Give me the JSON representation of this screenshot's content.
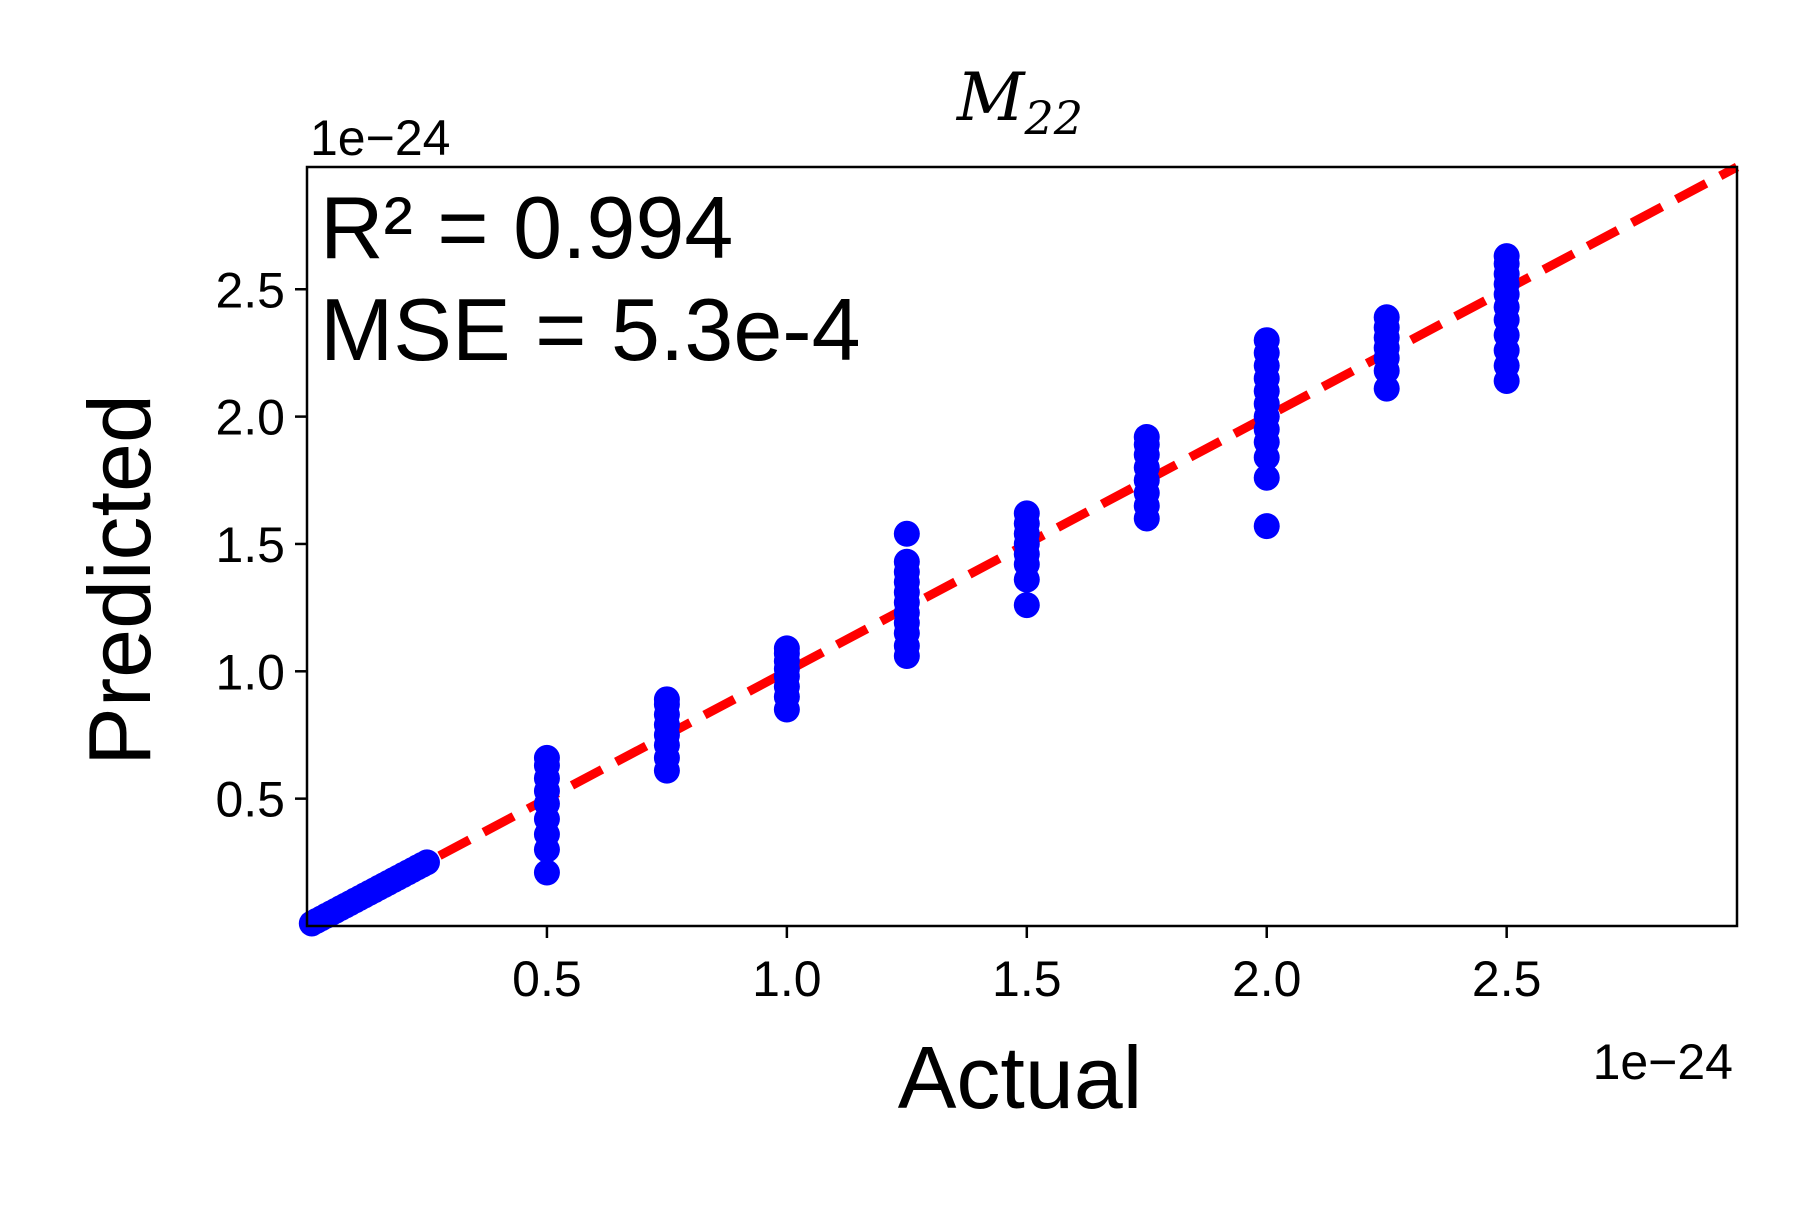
{
  "chart_data": {
    "type": "scatter",
    "title": "M",
    "title_subscript": "22",
    "xlabel": "Actual",
    "ylabel": "Predicted",
    "x_offset_label": "1e−24",
    "y_offset_label": "1e−24",
    "xlim": [
      0.0,
      2.98
    ],
    "ylim": [
      0.0,
      2.98
    ],
    "x_ticks": [
      0.5,
      1.0,
      1.5,
      2.0,
      2.5
    ],
    "x_tick_labels": [
      "0.5",
      "1.0",
      "1.5",
      "2.0",
      "2.5"
    ],
    "y_ticks": [
      0.5,
      1.0,
      1.5,
      2.0,
      2.5
    ],
    "y_tick_labels": [
      "0.5",
      "1.0",
      "1.5",
      "2.0",
      "2.5"
    ],
    "grid": false,
    "annotations": [
      "R² = 0.994",
      "MSE = 5.3e-4"
    ],
    "reference_line": {
      "x": [
        0.0,
        2.98
      ],
      "y": [
        0.0,
        2.98
      ],
      "color": "#ff0000",
      "style": "dashed"
    },
    "marker_color": "#0000ff",
    "points": [
      [
        0.01,
        0.01
      ],
      [
        0.02,
        0.02
      ],
      [
        0.03,
        0.03
      ],
      [
        0.04,
        0.04
      ],
      [
        0.05,
        0.05
      ],
      [
        0.06,
        0.06
      ],
      [
        0.07,
        0.07
      ],
      [
        0.08,
        0.08
      ],
      [
        0.09,
        0.09
      ],
      [
        0.1,
        0.1
      ],
      [
        0.11,
        0.11
      ],
      [
        0.12,
        0.12
      ],
      [
        0.13,
        0.13
      ],
      [
        0.14,
        0.14
      ],
      [
        0.15,
        0.15
      ],
      [
        0.16,
        0.16
      ],
      [
        0.17,
        0.17
      ],
      [
        0.18,
        0.18
      ],
      [
        0.19,
        0.19
      ],
      [
        0.2,
        0.2
      ],
      [
        0.21,
        0.21
      ],
      [
        0.22,
        0.22
      ],
      [
        0.23,
        0.23
      ],
      [
        0.24,
        0.24
      ],
      [
        0.25,
        0.25
      ],
      [
        0.5,
        0.21
      ],
      [
        0.5,
        0.3
      ],
      [
        0.5,
        0.36
      ],
      [
        0.5,
        0.42
      ],
      [
        0.5,
        0.48
      ],
      [
        0.5,
        0.53
      ],
      [
        0.5,
        0.58
      ],
      [
        0.5,
        0.63
      ],
      [
        0.5,
        0.66
      ],
      [
        0.75,
        0.61
      ],
      [
        0.75,
        0.66
      ],
      [
        0.75,
        0.71
      ],
      [
        0.75,
        0.75
      ],
      [
        0.75,
        0.79
      ],
      [
        0.75,
        0.83
      ],
      [
        0.75,
        0.87
      ],
      [
        0.75,
        0.89
      ],
      [
        1.0,
        0.85
      ],
      [
        1.0,
        0.9
      ],
      [
        1.0,
        0.94
      ],
      [
        1.0,
        0.98
      ],
      [
        1.0,
        1.01
      ],
      [
        1.0,
        1.04
      ],
      [
        1.0,
        1.07
      ],
      [
        1.0,
        1.09
      ],
      [
        1.25,
        1.06
      ],
      [
        1.25,
        1.1
      ],
      [
        1.25,
        1.15
      ],
      [
        1.25,
        1.19
      ],
      [
        1.25,
        1.23
      ],
      [
        1.25,
        1.27
      ],
      [
        1.25,
        1.31
      ],
      [
        1.25,
        1.35
      ],
      [
        1.25,
        1.39
      ],
      [
        1.25,
        1.43
      ],
      [
        1.25,
        1.54
      ],
      [
        1.5,
        1.26
      ],
      [
        1.5,
        1.36
      ],
      [
        1.5,
        1.42
      ],
      [
        1.5,
        1.46
      ],
      [
        1.5,
        1.5
      ],
      [
        1.5,
        1.54
      ],
      [
        1.5,
        1.58
      ],
      [
        1.5,
        1.62
      ],
      [
        1.75,
        1.6
      ],
      [
        1.75,
        1.65
      ],
      [
        1.75,
        1.7
      ],
      [
        1.75,
        1.75
      ],
      [
        1.75,
        1.8
      ],
      [
        1.75,
        1.85
      ],
      [
        1.75,
        1.89
      ],
      [
        1.75,
        1.92
      ],
      [
        2.0,
        1.57
      ],
      [
        2.0,
        1.76
      ],
      [
        2.0,
        1.84
      ],
      [
        2.0,
        1.9
      ],
      [
        2.0,
        1.95
      ],
      [
        2.0,
        2.0
      ],
      [
        2.0,
        2.05
      ],
      [
        2.0,
        2.1
      ],
      [
        2.0,
        2.15
      ],
      [
        2.0,
        2.2
      ],
      [
        2.0,
        2.25
      ],
      [
        2.0,
        2.3
      ],
      [
        2.25,
        2.11
      ],
      [
        2.25,
        2.18
      ],
      [
        2.25,
        2.23
      ],
      [
        2.25,
        2.27
      ],
      [
        2.25,
        2.31
      ],
      [
        2.25,
        2.35
      ],
      [
        2.25,
        2.39
      ],
      [
        2.5,
        2.14
      ],
      [
        2.5,
        2.2
      ],
      [
        2.5,
        2.26
      ],
      [
        2.5,
        2.32
      ],
      [
        2.5,
        2.38
      ],
      [
        2.5,
        2.43
      ],
      [
        2.5,
        2.48
      ],
      [
        2.5,
        2.52
      ],
      [
        2.5,
        2.56
      ],
      [
        2.5,
        2.6
      ],
      [
        2.5,
        2.63
      ]
    ]
  }
}
